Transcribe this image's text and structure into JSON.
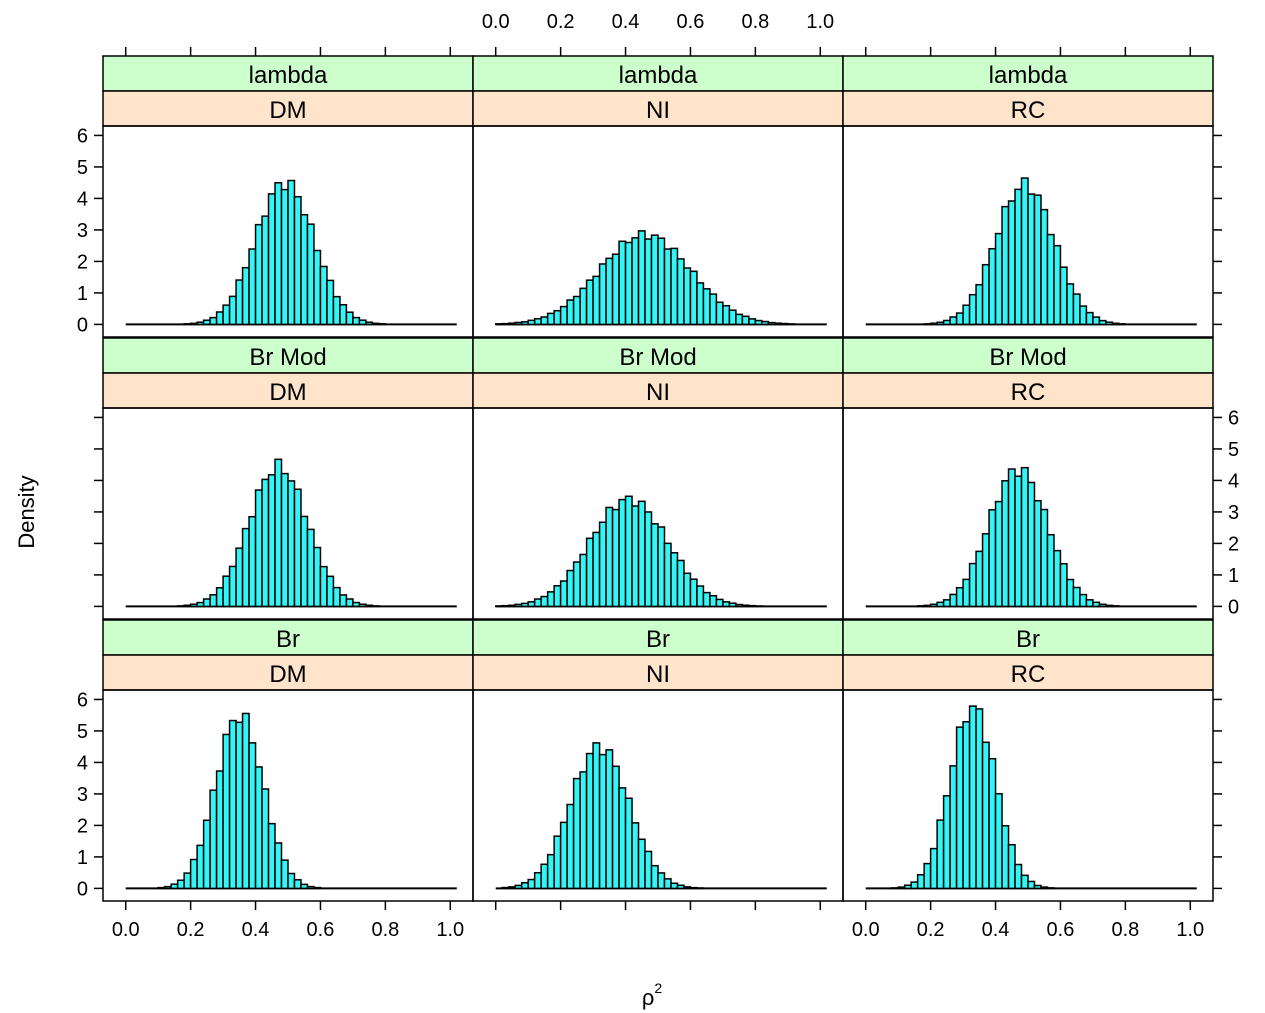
{
  "chart_data": {
    "type": "histogram-lattice",
    "xlabel": "ρ",
    "xlabel_superscript": "2",
    "ylabel": "Density",
    "xlim": [
      -0.07,
      1.07
    ],
    "ylim": [
      -0.4,
      6.3
    ],
    "x_ticks": [
      0.0,
      0.2,
      0.4,
      0.6,
      0.8,
      1.0
    ],
    "x_tick_labels": [
      "0.0",
      "0.2",
      "0.4",
      "0.6",
      "0.8",
      "1.0"
    ],
    "y_ticks": [
      0,
      1,
      2,
      3,
      4,
      5,
      6
    ],
    "y_tick_labels": [
      "0",
      "1",
      "2",
      "3",
      "4",
      "5",
      "6"
    ],
    "colors": {
      "bar_fill": "#33f5f5",
      "strip_outer": "#ccffcc",
      "strip_inner": "#ffe4cc"
    },
    "bins": {
      "start": 0.0,
      "end": 1.0,
      "count": 50
    },
    "rows": [
      "lambda",
      "Br Mod",
      "Br"
    ],
    "columns": [
      "DM",
      "NI",
      "RC"
    ],
    "panels": [
      {
        "outer": "lambda",
        "inner": "DM",
        "mean": 0.49,
        "sd": 0.09,
        "peak": 4.5
      },
      {
        "outer": "lambda",
        "inner": "NI",
        "mean": 0.46,
        "sd": 0.14,
        "peak": 2.85
      },
      {
        "outer": "lambda",
        "inner": "RC",
        "mean": 0.49,
        "sd": 0.09,
        "peak": 4.45
      },
      {
        "outer": "Br Mod",
        "inner": "DM",
        "mean": 0.47,
        "sd": 0.09,
        "peak": 4.45
      },
      {
        "outer": "Br Mod",
        "inner": "NI",
        "mean": 0.41,
        "sd": 0.12,
        "peak": 3.4
      },
      {
        "outer": "Br Mod",
        "inner": "RC",
        "mean": 0.47,
        "sd": 0.09,
        "peak": 4.35
      },
      {
        "outer": "Br",
        "inner": "DM",
        "mean": 0.35,
        "sd": 0.073,
        "peak": 5.5
      },
      {
        "outer": "Br",
        "inner": "NI",
        "mean": 0.32,
        "sd": 0.09,
        "peak": 4.5
      },
      {
        "outer": "Br",
        "inner": "RC",
        "mean": 0.33,
        "sd": 0.07,
        "peak": 5.75
      }
    ]
  }
}
